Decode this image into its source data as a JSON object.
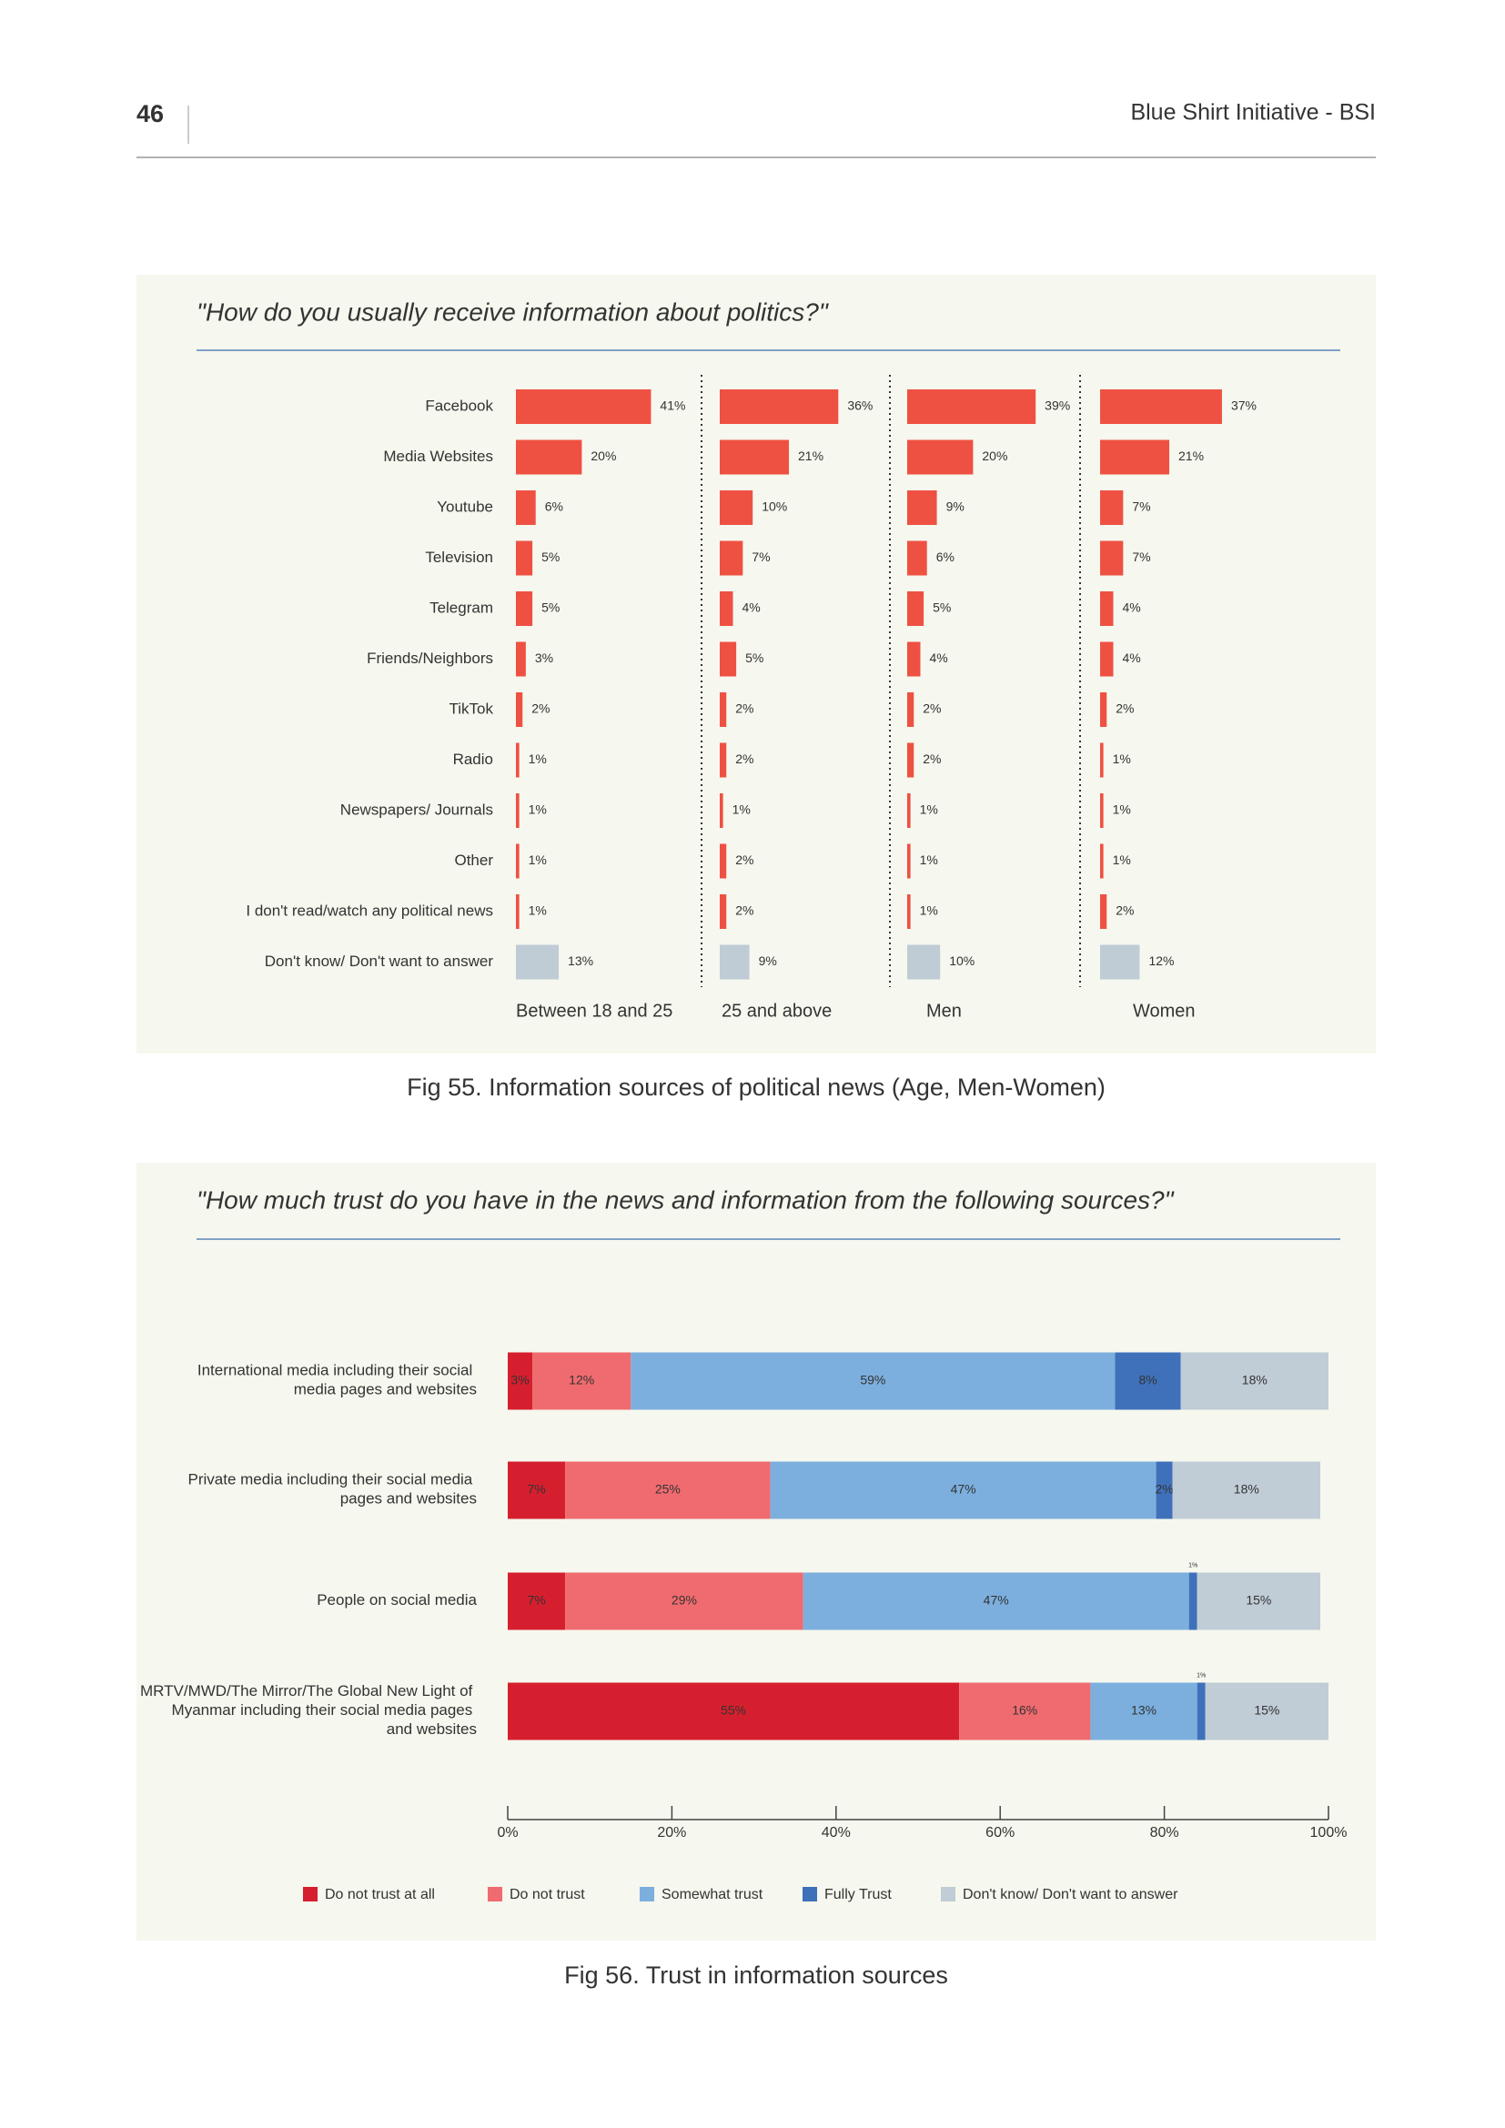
{
  "header": {
    "page_number": "46",
    "title": "Blue Shirt Initiative - BSI"
  },
  "chart_data": [
    {
      "type": "bar",
      "title": "\"How do you usually receive information about politics?\"",
      "caption": "Fig 55. Information sources of political news (Age, Men-Women)",
      "categories": [
        "Facebook",
        "Media Websites",
        "Youtube",
        "Television",
        "Telegram",
        "Friends/Neighbors",
        "TikTok",
        "Radio",
        "Newspapers/ Journals",
        "Other",
        "I don't read/watch any political news",
        "Don't know/ Don't want to answer"
      ],
      "category_colors": [
        "#ee5142",
        "#ee5142",
        "#ee5142",
        "#ee5142",
        "#ee5142",
        "#ee5142",
        "#ee5142",
        "#ee5142",
        "#ee5142",
        "#ee5142",
        "#ee5142",
        "#bfccd5"
      ],
      "series": [
        {
          "name": "Between 18 and 25",
          "values": [
            41,
            20,
            6,
            5,
            5,
            3,
            2,
            1,
            1,
            1,
            1,
            13
          ],
          "value_labels": [
            "41%",
            "20%",
            "6%",
            "5%",
            "5%",
            "3%",
            "2%",
            "1%",
            "1%",
            "1%",
            "1%",
            "13%"
          ]
        },
        {
          "name": "25 and above",
          "values": [
            36,
            21,
            10,
            7,
            4,
            5,
            2,
            2,
            1,
            2,
            2,
            9
          ],
          "value_labels": [
            "36%",
            "21%",
            "10%",
            "7%",
            "4%",
            "5%",
            "2%",
            "2%",
            "1%",
            "2%",
            "2%",
            "9%"
          ]
        },
        {
          "name": "Men",
          "values": [
            39,
            20,
            9,
            6,
            5,
            4,
            2,
            2,
            1,
            1,
            1,
            10
          ],
          "value_labels": [
            "39%",
            "20%",
            "9%",
            "6%",
            "5%",
            "4%",
            "2%",
            "2%",
            "1%",
            "1%",
            "1%",
            "10%"
          ]
        },
        {
          "name": "Women",
          "values": [
            37,
            21,
            7,
            7,
            4,
            4,
            2,
            1,
            1,
            1,
            2,
            12
          ],
          "value_labels": [
            "37%",
            "21%",
            "7%",
            "7%",
            "4%",
            "4%",
            "2%",
            "1%",
            "1%",
            "1%",
            "2%",
            "12%"
          ]
        }
      ]
    },
    {
      "type": "stacked_bar",
      "title": "\"How much trust do you have in the news and information from the following sources?\"",
      "caption": "Fig 56. Trust in information sources",
      "categories": [
        "International media including their social media pages and websites",
        "Private media including their social media pages and websites",
        "People on social media",
        "MRTV/MWD/The Mirror/The Global New Light of Myanmar including their social media pages and websites"
      ],
      "series": [
        {
          "name": "Do not trust at all",
          "color": "#d61f2e",
          "values": [
            3,
            7,
            7,
            55
          ],
          "value_labels": [
            "3%",
            "7%",
            "7%",
            "55%"
          ]
        },
        {
          "name": "Do not trust",
          "color": "#f06b6f",
          "values": [
            12,
            25,
            29,
            16
          ],
          "value_labels": [
            "12%",
            "25%",
            "29%",
            "16%"
          ]
        },
        {
          "name": "Somewhat trust",
          "color": "#7cafde",
          "values": [
            59,
            47,
            47,
            13
          ],
          "value_labels": [
            "59%",
            "47%",
            "47%",
            "13%"
          ]
        },
        {
          "name": "Fully Trust",
          "color": "#3f71ba",
          "values": [
            8,
            2,
            1,
            1
          ],
          "value_labels": [
            "8%",
            "2%",
            "1%",
            "1%"
          ]
        },
        {
          "name": "Don't know/ Don't want to answer",
          "color": "#c0ccd6",
          "values": [
            18,
            18,
            15,
            15
          ],
          "value_labels": [
            "18%",
            "18%",
            "15%",
            "15%"
          ]
        }
      ],
      "xlim": [
        0,
        100
      ],
      "xticks": [
        {
          "value": 0,
          "label": "0%"
        },
        {
          "value": 20,
          "label": "20%"
        },
        {
          "value": 40,
          "label": "40%"
        },
        {
          "value": 60,
          "label": "60%"
        },
        {
          "value": 80,
          "label": "80%"
        },
        {
          "value": 100,
          "label": "100%"
        }
      ]
    }
  ]
}
